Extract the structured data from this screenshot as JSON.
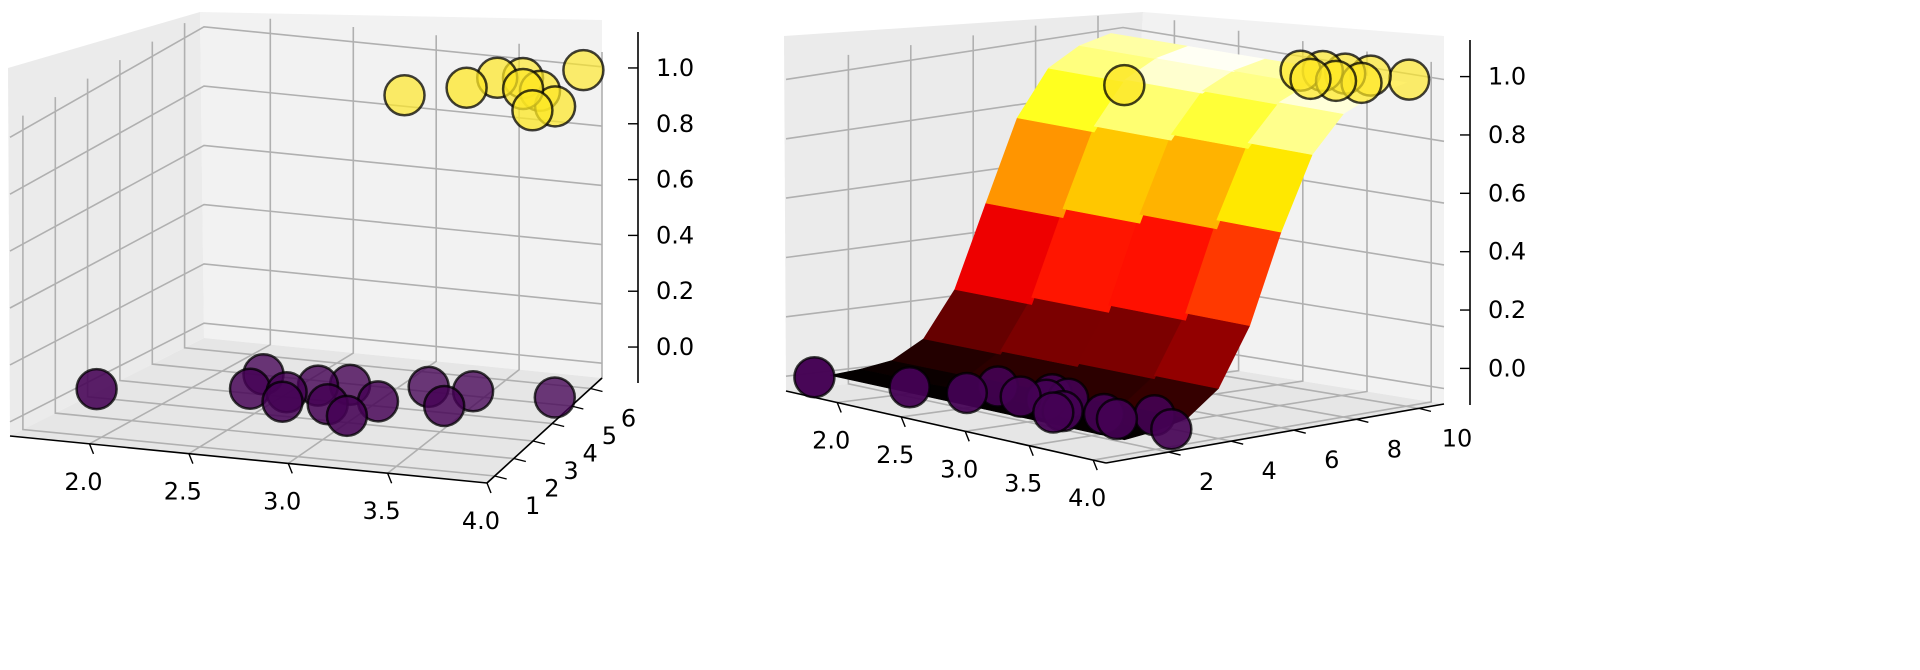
{
  "chart_data": [
    {
      "type": "scatter",
      "panel": "left",
      "projection": "3d",
      "x_ticks": [
        "2.0",
        "2.5",
        "3.0",
        "3.5",
        "4.0"
      ],
      "y_ticks": [
        "1",
        "2",
        "3",
        "4",
        "5",
        "6"
      ],
      "z_ticks": [
        "0.0",
        "0.2",
        "0.4",
        "0.6",
        "0.8",
        "1.0"
      ],
      "xlim": [
        1.6,
        4.0
      ],
      "ylim": [
        0.6,
        6.6
      ],
      "zlim": [
        -0.05,
        1.05
      ],
      "grid": true,
      "colors": {
        "class_0": "#440154",
        "class_1": "#fde725",
        "edge": "#000000"
      },
      "series": [
        {
          "points": [
            [
              1.7,
              2.7,
              0
            ],
            [
              2.4,
              3.5,
              0
            ],
            [
              2.6,
              3.5,
              0
            ],
            [
              2.35,
              4.3,
              0
            ],
            [
              2.7,
              4.0,
              0
            ],
            [
              2.65,
              3.0,
              0
            ],
            [
              2.88,
              3.1,
              0
            ],
            [
              2.85,
              4.2,
              0
            ],
            [
              3.1,
              3.5,
              0
            ],
            [
              3.25,
              4.5,
              0
            ],
            [
              3.05,
              2.6,
              0
            ],
            [
              3.45,
              3.6,
              0
            ],
            [
              3.5,
              4.5,
              0
            ],
            [
              3.95,
              4.6,
              0
            ]
          ]
        },
        {
          "points": [
            [
              2.9,
              6.0,
              0.88
            ],
            [
              3.4,
              5.0,
              1.0
            ],
            [
              3.5,
              5.6,
              1.0
            ],
            [
              3.55,
              6.4,
              0.95
            ],
            [
              3.7,
              5.2,
              1.0
            ],
            [
              3.75,
              5.6,
              0.97
            ],
            [
              3.8,
              4.8,
              0.96
            ],
            [
              3.9,
              6.5,
              0.99
            ],
            [
              3.85,
              5.5,
              0.93
            ]
          ]
        }
      ]
    },
    {
      "type": "surface",
      "panel": "right",
      "projection": "3d",
      "x_ticks": [
        "2.0",
        "2.5",
        "3.0",
        "3.5",
        "4.0"
      ],
      "y_ticks": [
        "2",
        "4",
        "6",
        "8",
        "10"
      ],
      "z_ticks": [
        "0.0",
        "0.2",
        "0.4",
        "0.6",
        "0.8",
        "1.0"
      ],
      "xlim": [
        1.6,
        4.1
      ],
      "ylim": [
        0.0,
        10.8
      ],
      "zlim": [
        -0.05,
        1.05
      ],
      "grid": true,
      "colormap": "hot",
      "surface_profile": {
        "y": [
          1,
          2,
          3,
          4,
          5,
          6,
          7,
          8,
          9,
          10
        ],
        "z": [
          0.0,
          0.01,
          0.03,
          0.1,
          0.27,
          0.55,
          0.8,
          0.93,
          0.98,
          1.0
        ]
      },
      "series": [
        {
          "points": [
            [
              1.7,
              0.5,
              0
            ],
            [
              2.2,
              1.5,
              0
            ],
            [
              2.45,
              3.3,
              0
            ],
            [
              2.5,
              2.1,
              0
            ],
            [
              2.75,
              2.8,
              0
            ],
            [
              2.8,
              3.6,
              0
            ],
            [
              2.95,
              3.5,
              0
            ],
            [
              2.9,
              3.0,
              0
            ],
            [
              3.2,
              2.3,
              0
            ],
            [
              3.4,
              2.8,
              0
            ],
            [
              3.2,
              2.0,
              0
            ],
            [
              3.55,
              2.6,
              0
            ],
            [
              3.6,
              3.6,
              0
            ],
            [
              3.95,
              2.7,
              0
            ]
          ]
        },
        {
          "points": [
            [
              2.9,
              5.5,
              1.0
            ],
            [
              3.3,
              9.5,
              1.0
            ],
            [
              3.4,
              9.8,
              1.0
            ],
            [
              3.45,
              9.2,
              0.99
            ],
            [
              3.55,
              9.9,
              1.0
            ],
            [
              3.6,
              9.4,
              0.99
            ],
            [
              3.7,
              10.1,
              1.0
            ],
            [
              3.75,
              9.6,
              0.99
            ],
            [
              3.95,
              10.3,
              1.0
            ]
          ]
        }
      ]
    }
  ]
}
